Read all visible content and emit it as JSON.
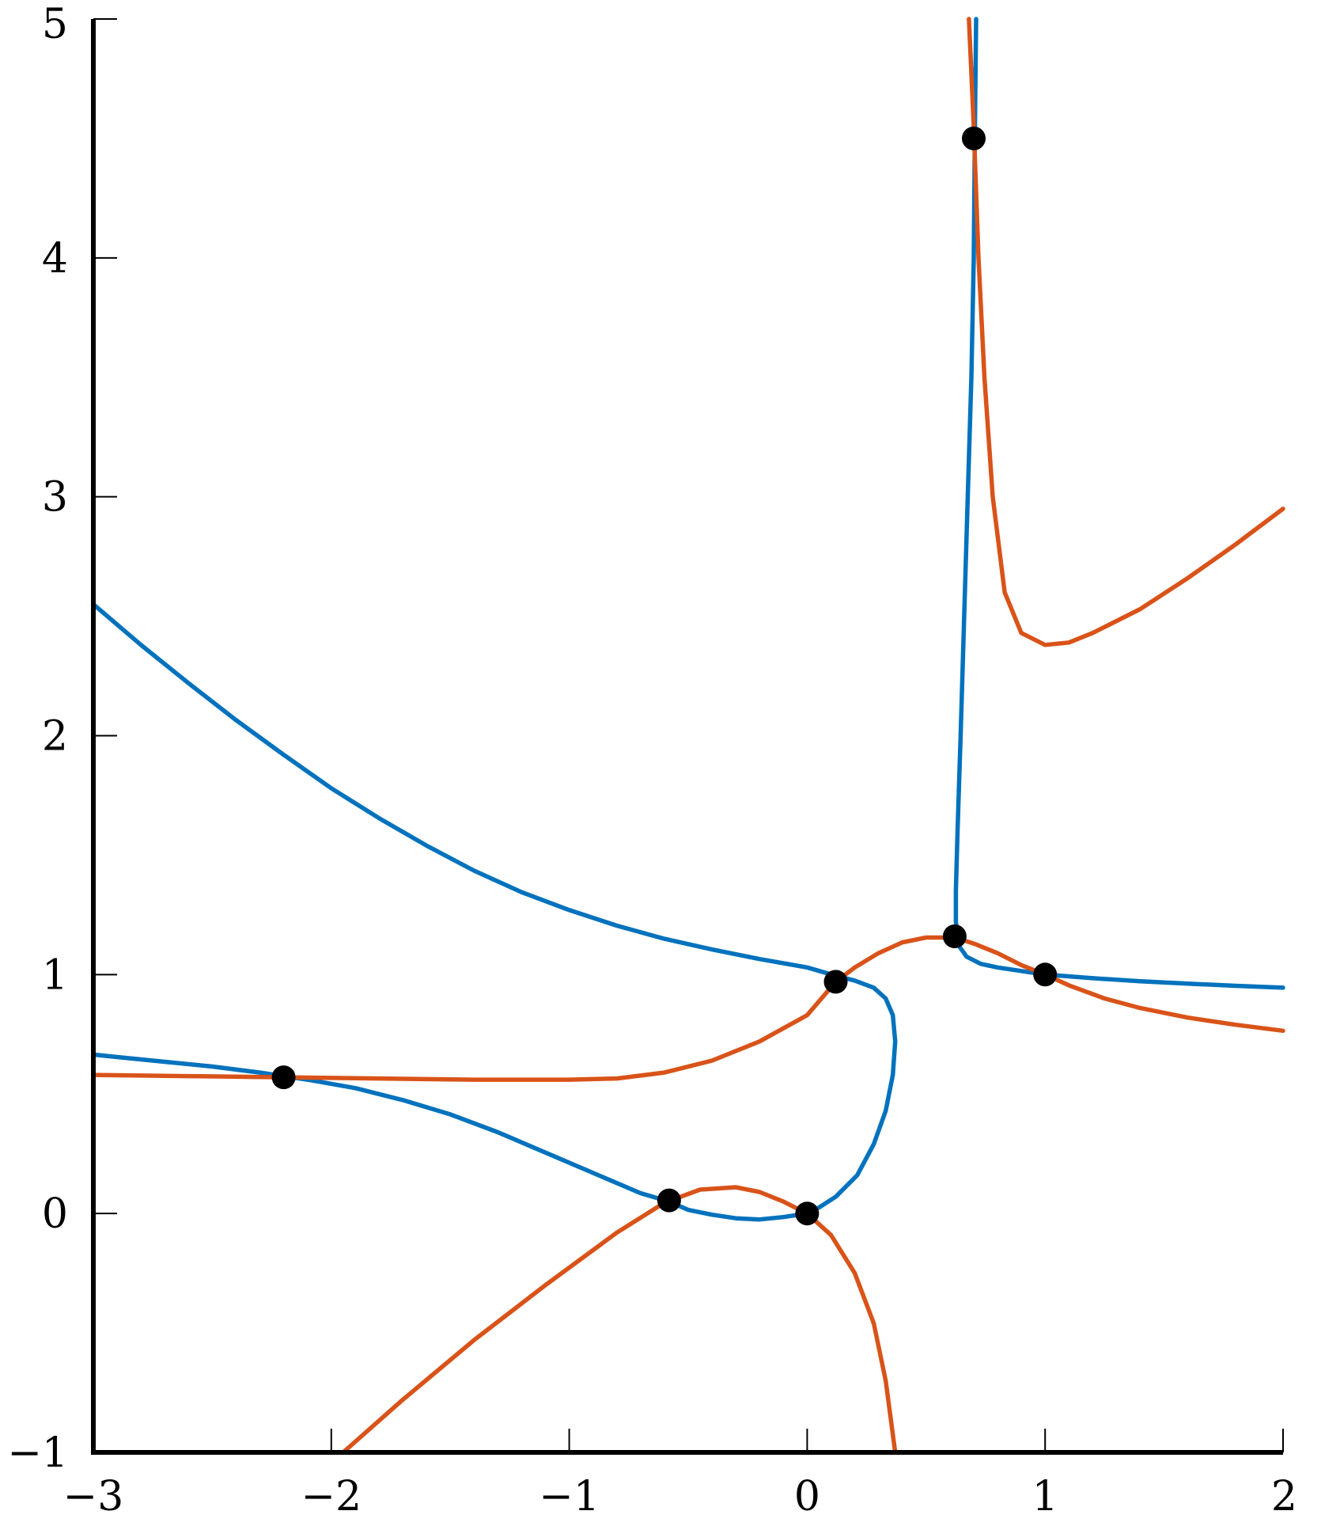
{
  "chart_data": {
    "type": "line",
    "title": "",
    "xlabel": "",
    "ylabel": "",
    "xlim": [
      -3,
      2
    ],
    "ylim": [
      -1,
      5
    ],
    "xticks": [
      -3,
      -2,
      -1,
      0,
      1,
      2
    ],
    "yticks": [
      -1,
      0,
      1,
      2,
      3,
      4,
      5
    ],
    "xtick_labels": [
      "−3",
      "−2",
      "−1",
      "0",
      "1",
      "2"
    ],
    "ytick_labels": [
      "−1",
      "0",
      "1",
      "2",
      "3",
      "4",
      "5"
    ],
    "grid": false,
    "legend": "none",
    "series": [
      {
        "color": "#0072BD",
        "segments": [
          [
            [
              -3,
              2.55
            ],
            [
              -2.8,
              2.38
            ],
            [
              -2.6,
              2.22
            ],
            [
              -2.4,
              2.065
            ],
            [
              -2.2,
              1.92
            ],
            [
              -2.0,
              1.78
            ],
            [
              -1.8,
              1.655
            ],
            [
              -1.6,
              1.54
            ],
            [
              -1.4,
              1.435
            ],
            [
              -1.2,
              1.345
            ],
            [
              -1.0,
              1.27
            ],
            [
              -0.8,
              1.205
            ],
            [
              -0.6,
              1.15
            ],
            [
              -0.4,
              1.105
            ],
            [
              -0.2,
              1.065
            ],
            [
              0.0,
              1.03
            ],
            [
              0.12,
              0.995
            ],
            [
              0.2,
              0.975
            ],
            [
              0.28,
              0.945
            ],
            [
              0.33,
              0.9
            ],
            [
              0.36,
              0.83
            ],
            [
              0.37,
              0.72
            ],
            [
              0.36,
              0.58
            ],
            [
              0.33,
              0.43
            ],
            [
              0.28,
              0.29
            ],
            [
              0.21,
              0.16
            ],
            [
              0.12,
              0.07
            ],
            [
              0.05,
              0.025
            ],
            [
              0.0,
              0.0
            ],
            [
              -0.1,
              -0.015
            ],
            [
              -0.2,
              -0.025
            ],
            [
              -0.3,
              -0.02
            ],
            [
              -0.4,
              -0.005
            ],
            [
              -0.5,
              0.015
            ],
            [
              -0.58,
              0.05
            ],
            [
              -0.7,
              0.085
            ],
            [
              -0.9,
              0.17
            ],
            [
              -1.1,
              0.255
            ],
            [
              -1.3,
              0.34
            ],
            [
              -1.5,
              0.415
            ],
            [
              -1.7,
              0.475
            ],
            [
              -1.9,
              0.525
            ],
            [
              -2.1,
              0.56
            ],
            [
              -2.3,
              0.59
            ],
            [
              -2.5,
              0.615
            ],
            [
              -2.7,
              0.635
            ],
            [
              -2.9,
              0.655
            ],
            [
              -3.0,
              0.665
            ]
          ],
          [
            [
              0.71,
              5.0
            ],
            [
              0.705,
              4.55
            ],
            [
              0.7,
              4.0
            ],
            [
              0.69,
              3.5
            ],
            [
              0.675,
              3.0
            ],
            [
              0.66,
              2.5
            ],
            [
              0.645,
              2.0
            ],
            [
              0.632,
              1.6
            ],
            [
              0.625,
              1.35
            ],
            [
              0.625,
              1.22
            ],
            [
              0.638,
              1.12
            ],
            [
              0.67,
              1.075
            ],
            [
              0.73,
              1.045
            ],
            [
              0.8,
              1.03
            ],
            [
              0.9,
              1.015
            ],
            [
              1.0,
              1.0
            ],
            [
              1.2,
              0.985
            ],
            [
              1.4,
              0.972
            ],
            [
              1.6,
              0.962
            ],
            [
              1.8,
              0.953
            ],
            [
              2.0,
              0.945
            ]
          ]
        ]
      },
      {
        "color": "#D95319",
        "segments": [
          [
            [
              -3,
              0.58
            ],
            [
              -2.6,
              0.575
            ],
            [
              -2.2,
              0.57
            ],
            [
              -1.8,
              0.565
            ],
            [
              -1.4,
              0.56
            ],
            [
              -1.0,
              0.56
            ],
            [
              -0.8,
              0.565
            ],
            [
              -0.6,
              0.59
            ],
            [
              -0.4,
              0.64
            ],
            [
              -0.2,
              0.72
            ],
            [
              0.0,
              0.83
            ],
            [
              0.12,
              0.97
            ],
            [
              0.2,
              1.03
            ],
            [
              0.3,
              1.09
            ],
            [
              0.4,
              1.135
            ],
            [
              0.5,
              1.155
            ],
            [
              0.62,
              1.155
            ],
            [
              0.7,
              1.13
            ],
            [
              0.8,
              1.09
            ],
            [
              0.9,
              1.04
            ],
            [
              1.0,
              1.0
            ],
            [
              1.1,
              0.955
            ],
            [
              1.25,
              0.9
            ],
            [
              1.4,
              0.86
            ],
            [
              1.6,
              0.82
            ],
            [
              1.8,
              0.79
            ],
            [
              2.0,
              0.765
            ]
          ],
          [
            [
              -1.95,
              -1.0
            ],
            [
              -1.7,
              -0.78
            ],
            [
              -1.4,
              -0.53
            ],
            [
              -1.1,
              -0.3
            ],
            [
              -0.8,
              -0.08
            ],
            [
              -0.6,
              0.045
            ],
            [
              -0.45,
              0.1
            ],
            [
              -0.3,
              0.11
            ],
            [
              -0.2,
              0.09
            ],
            [
              -0.1,
              0.05
            ],
            [
              0.0,
              0.0
            ],
            [
              0.1,
              -0.09
            ],
            [
              0.2,
              -0.25
            ],
            [
              0.28,
              -0.46
            ],
            [
              0.33,
              -0.7
            ],
            [
              0.37,
              -1.0
            ]
          ],
          [
            [
              0.68,
              5.0
            ],
            [
              0.7,
              4.55
            ],
            [
              0.72,
              4.0
            ],
            [
              0.745,
              3.5
            ],
            [
              0.78,
              3.0
            ],
            [
              0.83,
              2.6
            ],
            [
              0.9,
              2.43
            ],
            [
              1.0,
              2.38
            ],
            [
              1.1,
              2.39
            ],
            [
              1.2,
              2.43
            ],
            [
              1.4,
              2.53
            ],
            [
              1.6,
              2.66
            ],
            [
              1.8,
              2.8
            ],
            [
              2.0,
              2.95
            ]
          ]
        ]
      }
    ],
    "intersection_points": [
      [
        -2.2,
        0.57
      ],
      [
        -0.58,
        0.055
      ],
      [
        0.0,
        0.0
      ],
      [
        0.12,
        0.97
      ],
      [
        0.62,
        1.16
      ],
      [
        1.0,
        1.0
      ],
      [
        0.7,
        4.5
      ]
    ]
  }
}
